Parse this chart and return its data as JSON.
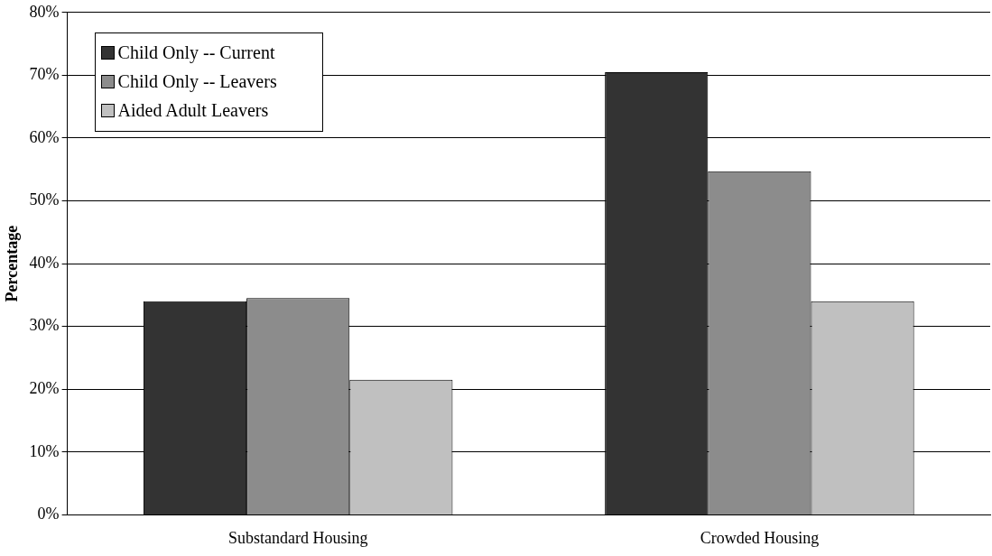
{
  "chart_data": {
    "type": "bar",
    "ylabel": "Percentage",
    "categories": [
      "Substandard Housing",
      "Crowded Housing"
    ],
    "series": [
      {
        "name": "Child Only -- Current",
        "color": "#333333",
        "values": [
          34,
          70.5
        ]
      },
      {
        "name": "Child Only -- Leavers",
        "color": "#8c8c8c",
        "values": [
          34.5,
          54.7
        ]
      },
      {
        "name": "Aided Adult Leavers",
        "color": "#c0c0c0",
        "values": [
          21.5,
          34
        ]
      }
    ],
    "ylim": [
      0,
      80
    ],
    "yticks": [
      {
        "value": 0,
        "label": "0%"
      },
      {
        "value": 10,
        "label": "10%"
      },
      {
        "value": 20,
        "label": "20%"
      },
      {
        "value": 30,
        "label": "30%"
      },
      {
        "value": 40,
        "label": "40%"
      },
      {
        "value": 50,
        "label": "50%"
      },
      {
        "value": 60,
        "label": "60%"
      },
      {
        "value": 70,
        "label": "70%"
      },
      {
        "value": 80,
        "label": "80%"
      }
    ],
    "grid": "y",
    "legend": "top left"
  }
}
